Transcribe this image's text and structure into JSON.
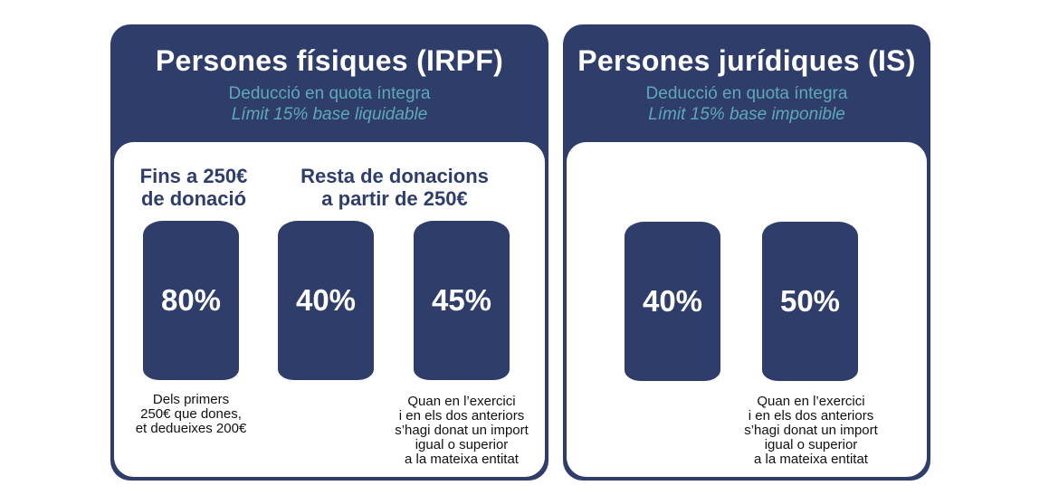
{
  "irpf": {
    "title": "Persones físiques (IRPF)",
    "subtitle": "Deducció en quota íntegra",
    "limit": "Límit 15% base liquidable",
    "col1_heading": [
      "Fins a 250€",
      "de donació"
    ],
    "col2_heading": [
      "Resta de donacions",
      "a partir de 250€"
    ],
    "rates": [
      "80%",
      "40%",
      "45%"
    ],
    "note_left": [
      "Dels primers",
      "250€ que dones,",
      "et dedueixes 200€"
    ],
    "note_right": [
      "Quan en l’exercici",
      "i en els dos anteriors",
      "s’hagi donat un import",
      "igual o superior",
      "a la mateixa entitat"
    ]
  },
  "is": {
    "title": "Persones jurídiques (IS)",
    "subtitle": "Deducció en quota íntegra",
    "limit": "Límit 15% base imponible",
    "rates": [
      "40%",
      "50%"
    ],
    "note": [
      "Quan en l’exercici",
      "i en els dos anteriors",
      "s’hagi donat un import",
      "igual o superior",
      "a la mateixa entitat"
    ]
  },
  "colors": {
    "navy": "#2f3d6a",
    "teal": "#5fa8b8",
    "white": "#ffffff"
  }
}
